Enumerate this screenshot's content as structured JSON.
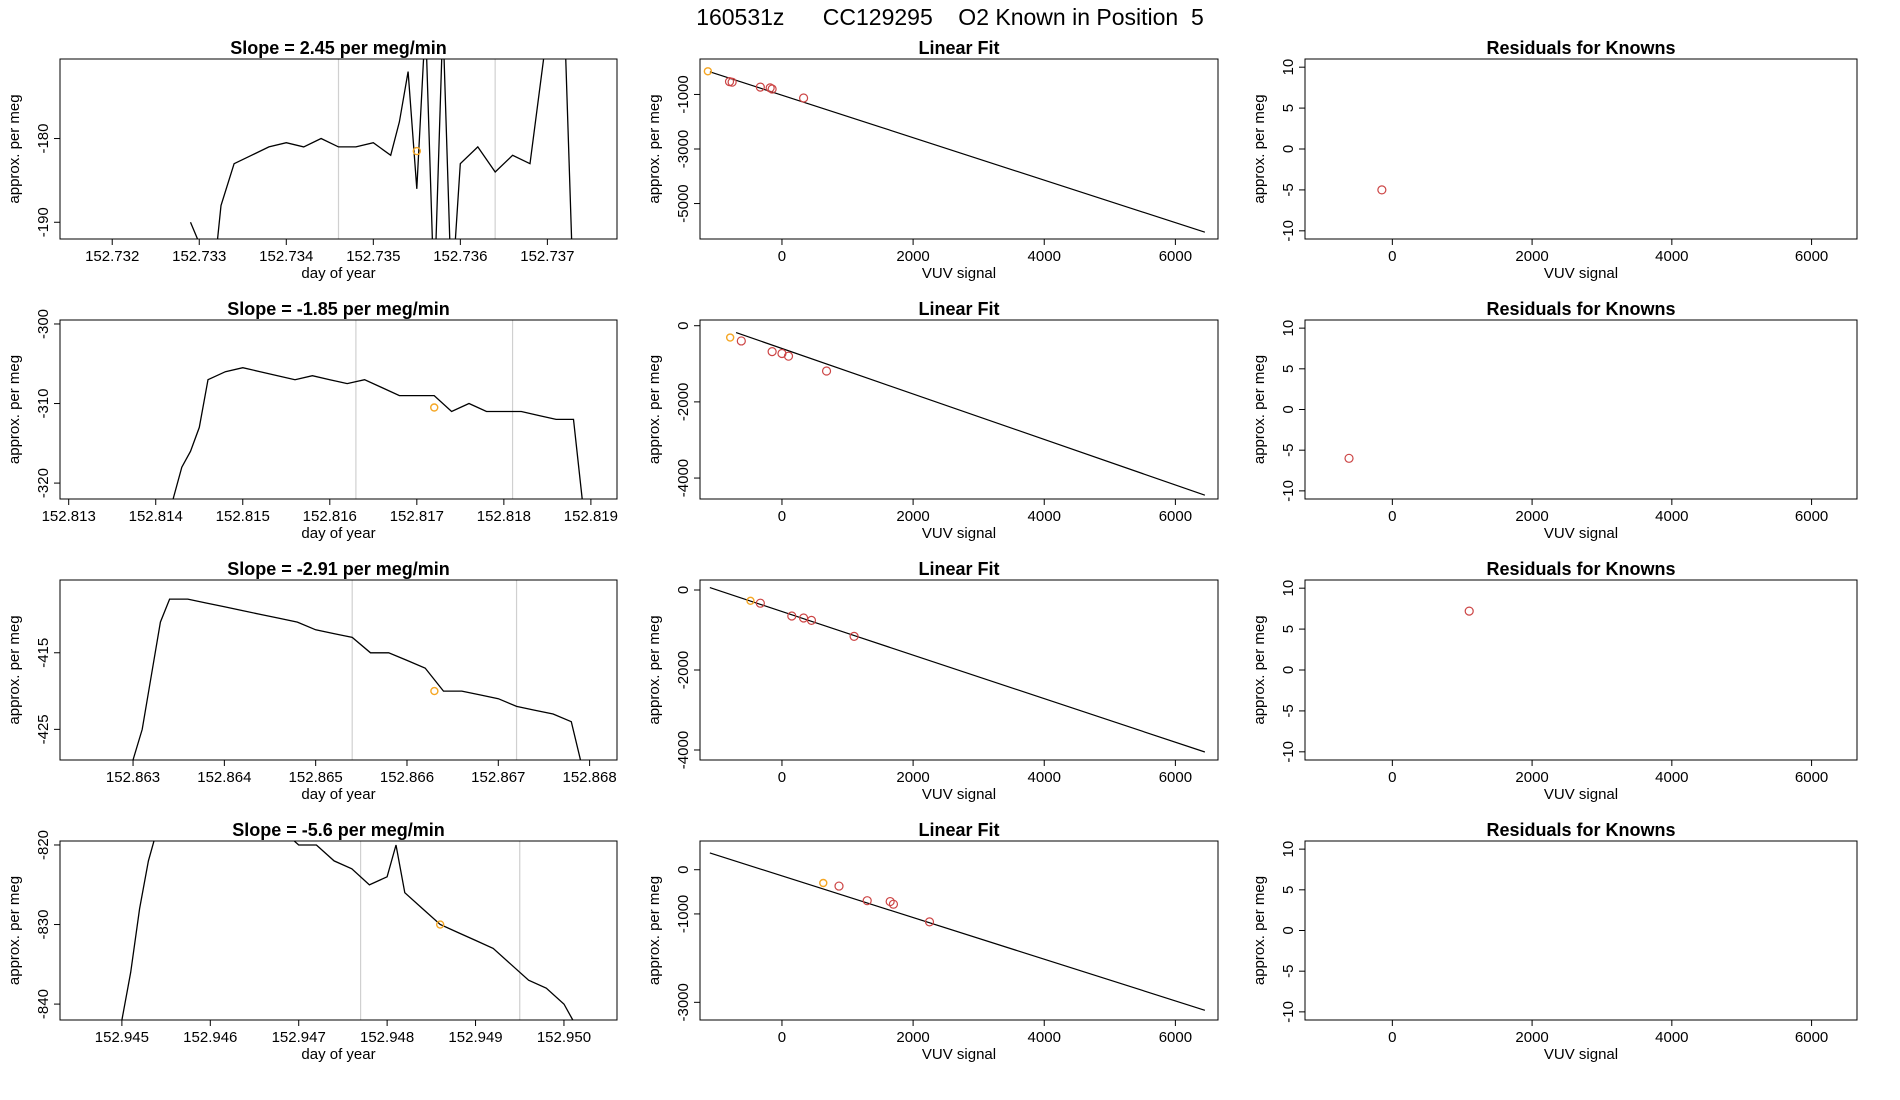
{
  "title": "160531z      CC129295    O2 Known in Position  5",
  "colors": {
    "line": "#000000",
    "vline": "#d0d0d0",
    "point": "#cc4444",
    "highlight": "#f5a623",
    "axis": "#000000"
  },
  "chart_data": [
    {
      "id": "r1-ts",
      "type": "line",
      "title": "Slope =  2.45  per meg/min",
      "xlabel": "day of year",
      "ylabel": "approx. per meg",
      "xlim": [
        152.7314,
        152.7378
      ],
      "ylim": [
        -192,
        -170.5
      ],
      "xticks": [
        "152.732",
        "152.733",
        "152.734",
        "152.735",
        "152.736",
        "152.737"
      ],
      "yticks": [
        "-190",
        "-180"
      ],
      "vlines": [
        152.7346,
        152.7364
      ],
      "highlight": {
        "x": 152.7355,
        "y": -181.5
      },
      "data": [
        [
          152.7329,
          -190
        ],
        [
          152.733,
          -192.5
        ],
        [
          152.7332,
          -193
        ],
        [
          152.73325,
          -188
        ],
        [
          152.7334,
          -183
        ],
        [
          152.7336,
          -182
        ],
        [
          152.7338,
          -181
        ],
        [
          152.734,
          -180.5
        ],
        [
          152.7342,
          -181
        ],
        [
          152.7344,
          -180
        ],
        [
          152.7346,
          -181
        ],
        [
          152.7348,
          -181
        ],
        [
          152.735,
          -180.5
        ],
        [
          152.7352,
          -182
        ],
        [
          152.7353,
          -178
        ],
        [
          152.7354,
          -172
        ],
        [
          152.7355,
          -186
        ],
        [
          152.7356,
          -166
        ],
        [
          152.7357,
          -199
        ],
        [
          152.7358,
          -166
        ],
        [
          152.7359,
          -199
        ],
        [
          152.736,
          -183
        ],
        [
          152.7362,
          -181
        ],
        [
          152.7364,
          -184
        ],
        [
          152.7366,
          -182
        ],
        [
          152.7368,
          -183
        ],
        [
          152.737,
          -167
        ],
        [
          152.7372,
          -167
        ],
        [
          152.7373,
          -199
        ]
      ]
    },
    {
      "id": "r1-fit",
      "type": "scatter",
      "title": "Linear Fit",
      "xlabel": "VUV signal",
      "ylabel": "approx. per meg",
      "xlim": [
        -1250,
        6650
      ],
      "ylim": [
        -6300,
        300
      ],
      "xticks": [
        "0",
        "2000",
        "4000",
        "6000"
      ],
      "yticks": [
        "-5000",
        "-3000",
        "-1000"
      ],
      "line": [
        [
          -1100,
          -170
        ],
        [
          6450,
          -6050
        ]
      ],
      "highlight": {
        "x": -1130,
        "y": -150
      },
      "points": [
        [
          -800,
          -530
        ],
        [
          -760,
          -550
        ],
        [
          -330,
          -730
        ],
        [
          -180,
          -760
        ],
        [
          -150,
          -800
        ],
        [
          330,
          -1130
        ]
      ]
    },
    {
      "id": "r1-res",
      "type": "scatter",
      "title": "Residuals for Knowns",
      "xlabel": "VUV signal",
      "ylabel": "approx. per meg",
      "xlim": [
        -1250,
        6650
      ],
      "ylim": [
        -11,
        11
      ],
      "xticks": [
        "0",
        "2000",
        "4000",
        "6000"
      ],
      "yticks": [
        "-10",
        "-5",
        "0",
        "5",
        "10"
      ],
      "points": [
        [
          -150,
          -5
        ]
      ]
    },
    {
      "id": "r2-ts",
      "type": "line",
      "title": "Slope =  -1.85  per meg/min",
      "xlabel": "day of year",
      "ylabel": "approx. per meg",
      "xlim": [
        152.8129,
        152.8193
      ],
      "ylim": [
        -322,
        -299.5
      ],
      "xticks": [
        "152.813",
        "152.814",
        "152.815",
        "152.816",
        "152.817",
        "152.818",
        "152.819"
      ],
      "yticks": [
        "-320",
        "-310",
        "-300"
      ],
      "vlines": [
        152.8163,
        152.8181
      ],
      "highlight": {
        "x": 152.8172,
        "y": -310.5
      },
      "data": [
        [
          152.8142,
          -322
        ],
        [
          152.8143,
          -318
        ],
        [
          152.8144,
          -316
        ],
        [
          152.8145,
          -313
        ],
        [
          152.8146,
          -307
        ],
        [
          152.8148,
          -306
        ],
        [
          152.815,
          -305.5
        ],
        [
          152.8152,
          -306
        ],
        [
          152.8154,
          -306.5
        ],
        [
          152.8156,
          -307
        ],
        [
          152.8158,
          -306.5
        ],
        [
          152.816,
          -307
        ],
        [
          152.8162,
          -307.5
        ],
        [
          152.8164,
          -307
        ],
        [
          152.8166,
          -308
        ],
        [
          152.8168,
          -309
        ],
        [
          152.817,
          -309
        ],
        [
          152.8172,
          -309
        ],
        [
          152.8174,
          -311
        ],
        [
          152.8176,
          -310
        ],
        [
          152.8178,
          -311
        ],
        [
          152.818,
          -311
        ],
        [
          152.8182,
          -311
        ],
        [
          152.8184,
          -311.5
        ],
        [
          152.8186,
          -312
        ],
        [
          152.8188,
          -312
        ],
        [
          152.8189,
          -322
        ]
      ]
    },
    {
      "id": "r2-fit",
      "type": "scatter",
      "title": "Linear Fit",
      "xlabel": "VUV signal",
      "ylabel": "approx. per meg",
      "xlim": [
        -1250,
        6650
      ],
      "ylim": [
        -4550,
        150
      ],
      "xticks": [
        "0",
        "2000",
        "4000",
        "6000"
      ],
      "yticks": [
        "-4000",
        "-2000",
        "0"
      ],
      "line": [
        [
          -700,
          -180
        ],
        [
          6450,
          -4450
        ]
      ],
      "highlight": {
        "x": -790,
        "y": -310
      },
      "points": [
        [
          -620,
          -400
        ],
        [
          -150,
          -680
        ],
        [
          0,
          -730
        ],
        [
          100,
          -800
        ],
        [
          680,
          -1190
        ]
      ]
    },
    {
      "id": "r2-res",
      "type": "scatter",
      "title": "Residuals for Knowns",
      "xlabel": "VUV signal",
      "ylabel": "approx. per meg",
      "xlim": [
        -1250,
        6650
      ],
      "ylim": [
        -11,
        11
      ],
      "xticks": [
        "0",
        "2000",
        "4000",
        "6000"
      ],
      "yticks": [
        "-10",
        "-5",
        "0",
        "5",
        "10"
      ],
      "points": [
        [
          -620,
          -6
        ]
      ]
    },
    {
      "id": "r3-ts",
      "type": "line",
      "title": "Slope =  -2.91  per meg/min",
      "xlabel": "day of year",
      "ylabel": "approx. per meg",
      "xlim": [
        152.8622,
        152.8683
      ],
      "ylim": [
        -429,
        -405.5
      ],
      "xticks": [
        "152.863",
        "152.864",
        "152.865",
        "152.866",
        "152.867",
        "152.868"
      ],
      "yticks": [
        "-425",
        "-415"
      ],
      "vlines": [
        152.8654,
        152.8672
      ],
      "highlight": {
        "x": 152.8663,
        "y": -420
      },
      "data": [
        [
          152.863,
          -429
        ],
        [
          152.8631,
          -425
        ],
        [
          152.8632,
          -418
        ],
        [
          152.8633,
          -411
        ],
        [
          152.8634,
          -408
        ],
        [
          152.8636,
          -408
        ],
        [
          152.8638,
          -408.5
        ],
        [
          152.864,
          -409
        ],
        [
          152.8642,
          -409.5
        ],
        [
          152.8644,
          -410
        ],
        [
          152.8646,
          -410.5
        ],
        [
          152.8648,
          -411
        ],
        [
          152.865,
          -412
        ],
        [
          152.8652,
          -412.5
        ],
        [
          152.8654,
          -413
        ],
        [
          152.8656,
          -415
        ],
        [
          152.8658,
          -415
        ],
        [
          152.866,
          -416
        ],
        [
          152.8662,
          -417
        ],
        [
          152.8664,
          -420
        ],
        [
          152.8666,
          -420
        ],
        [
          152.8668,
          -420.5
        ],
        [
          152.867,
          -421
        ],
        [
          152.8672,
          -422
        ],
        [
          152.8674,
          -422.5
        ],
        [
          152.8676,
          -423
        ],
        [
          152.8678,
          -424
        ],
        [
          152.8679,
          -429
        ]
      ]
    },
    {
      "id": "r3-fit",
      "type": "scatter",
      "title": "Linear Fit",
      "xlabel": "VUV signal",
      "ylabel": "approx. per meg",
      "xlim": [
        -1250,
        6650
      ],
      "ylim": [
        -4250,
        250
      ],
      "xticks": [
        "0",
        "2000",
        "4000",
        "6000"
      ],
      "yticks": [
        "-4000",
        "-2000",
        "0"
      ],
      "line": [
        [
          -1100,
          60
        ],
        [
          6450,
          -4050
        ]
      ],
      "highlight": {
        "x": -480,
        "y": -270
      },
      "points": [
        [
          -330,
          -330
        ],
        [
          150,
          -650
        ],
        [
          330,
          -700
        ],
        [
          450,
          -760
        ],
        [
          1100,
          -1160
        ]
      ]
    },
    {
      "id": "r3-res",
      "type": "scatter",
      "title": "Residuals for Knowns",
      "xlabel": "VUV signal",
      "ylabel": "approx. per meg",
      "xlim": [
        -1250,
        6650
      ],
      "ylim": [
        -11,
        11
      ],
      "xticks": [
        "0",
        "2000",
        "4000",
        "6000"
      ],
      "yticks": [
        "-10",
        "-5",
        "0",
        "5",
        "10"
      ],
      "points": [
        [
          1100,
          7.2
        ]
      ]
    },
    {
      "id": "r4-ts",
      "type": "line",
      "title": "Slope =  -5.6  per meg/min",
      "xlabel": "day of year",
      "ylabel": "approx. per meg",
      "xlim": [
        152.9443,
        152.9506
      ],
      "ylim": [
        -842,
        -819.5
      ],
      "xticks": [
        "152.945",
        "152.946",
        "152.947",
        "152.948",
        "152.949",
        "152.950"
      ],
      "yticks": [
        "-840",
        "-830",
        "-820"
      ],
      "vlines": [
        152.9477,
        152.9495
      ],
      "highlight": {
        "x": 152.9486,
        "y": -830
      },
      "data": [
        [
          152.945,
          -842
        ],
        [
          152.9451,
          -836
        ],
        [
          152.9452,
          -828
        ],
        [
          152.9453,
          -822
        ],
        [
          152.9454,
          -818
        ],
        [
          152.946,
          -815
        ],
        [
          152.9465,
          -816
        ],
        [
          152.9468,
          -818
        ],
        [
          152.947,
          -820
        ],
        [
          152.9472,
          -820
        ],
        [
          152.9474,
          -822
        ],
        [
          152.9476,
          -823
        ],
        [
          152.9478,
          -825
        ],
        [
          152.948,
          -824
        ],
        [
          152.9481,
          -820
        ],
        [
          152.9482,
          -826
        ],
        [
          152.9484,
          -828
        ],
        [
          152.9486,
          -830
        ],
        [
          152.9488,
          -831
        ],
        [
          152.949,
          -832
        ],
        [
          152.9492,
          -833
        ],
        [
          152.9494,
          -835
        ],
        [
          152.9496,
          -837
        ],
        [
          152.9498,
          -838
        ],
        [
          152.95,
          -840
        ],
        [
          152.9501,
          -842
        ]
      ]
    },
    {
      "id": "r4-fit",
      "type": "scatter",
      "title": "Linear Fit",
      "xlabel": "VUV signal",
      "ylabel": "approx. per meg",
      "xlim": [
        -1250,
        6650
      ],
      "ylim": [
        -3400,
        650
      ],
      "xticks": [
        "0",
        "2000",
        "4000",
        "6000"
      ],
      "yticks": [
        "-3000",
        "-1000",
        "0"
      ],
      "line": [
        [
          -1100,
          380
        ],
        [
          6450,
          -3180
        ]
      ],
      "highlight": {
        "x": 630,
        "y": -300
      },
      "points": [
        [
          870,
          -370
        ],
        [
          1300,
          -700
        ],
        [
          1650,
          -720
        ],
        [
          1700,
          -780
        ],
        [
          2250,
          -1180
        ]
      ]
    },
    {
      "id": "r4-res",
      "type": "scatter",
      "title": "Residuals for Knowns",
      "xlabel": "VUV signal",
      "ylabel": "approx. per meg",
      "xlim": [
        -1250,
        6650
      ],
      "ylim": [
        -11,
        11
      ],
      "xticks": [
        "0",
        "2000",
        "4000",
        "6000"
      ],
      "yticks": [
        "-10",
        "-5",
        "0",
        "5",
        "10"
      ],
      "points": []
    }
  ]
}
